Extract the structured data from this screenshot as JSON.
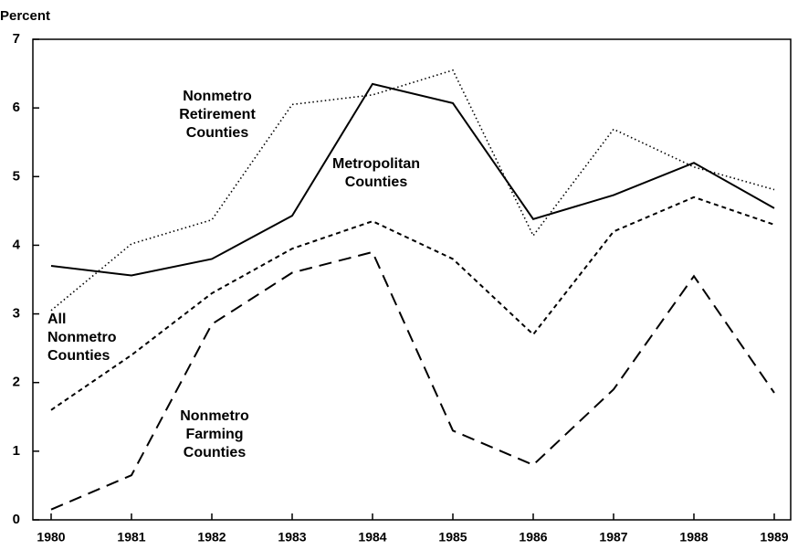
{
  "chart_data": {
    "type": "line",
    "ylabel": "Percent",
    "x": [
      1980,
      1981,
      1982,
      1983,
      1984,
      1985,
      1986,
      1987,
      1988,
      1989
    ],
    "xlim": [
      1980,
      1989
    ],
    "xticks": [
      1980,
      1981,
      1982,
      1983,
      1984,
      1985,
      1986,
      1987,
      1988,
      1989
    ],
    "ylim": [
      0,
      7
    ],
    "yticks": [
      0,
      1,
      2,
      3,
      4,
      5,
      6,
      7
    ],
    "series": [
      {
        "name": "Metropolitan Counties",
        "color": "#000000",
        "linestyle": "solid",
        "values": [
          3.7,
          3.56,
          3.8,
          4.43,
          6.35,
          6.07,
          4.38,
          4.73,
          5.2,
          4.54
        ]
      },
      {
        "name": "Nonmetro Retirement Counties",
        "color": "#000000",
        "linestyle": "dotted",
        "values": [
          3.05,
          4.02,
          4.37,
          6.05,
          6.19,
          6.55,
          4.14,
          5.69,
          5.14,
          4.81
        ]
      },
      {
        "name": "All Nonmetro Counties",
        "color": "#000000",
        "linestyle": "short-dash",
        "values": [
          1.6,
          2.4,
          3.3,
          3.95,
          4.35,
          3.8,
          2.7,
          4.2,
          4.7,
          4.3
        ]
      },
      {
        "name": "Nonmetro Farming Counties",
        "color": "#000000",
        "linestyle": "long-dash",
        "values": [
          0.15,
          0.65,
          2.85,
          3.6,
          3.9,
          1.3,
          0.8,
          1.9,
          3.55,
          1.85
        ]
      }
    ]
  }
}
